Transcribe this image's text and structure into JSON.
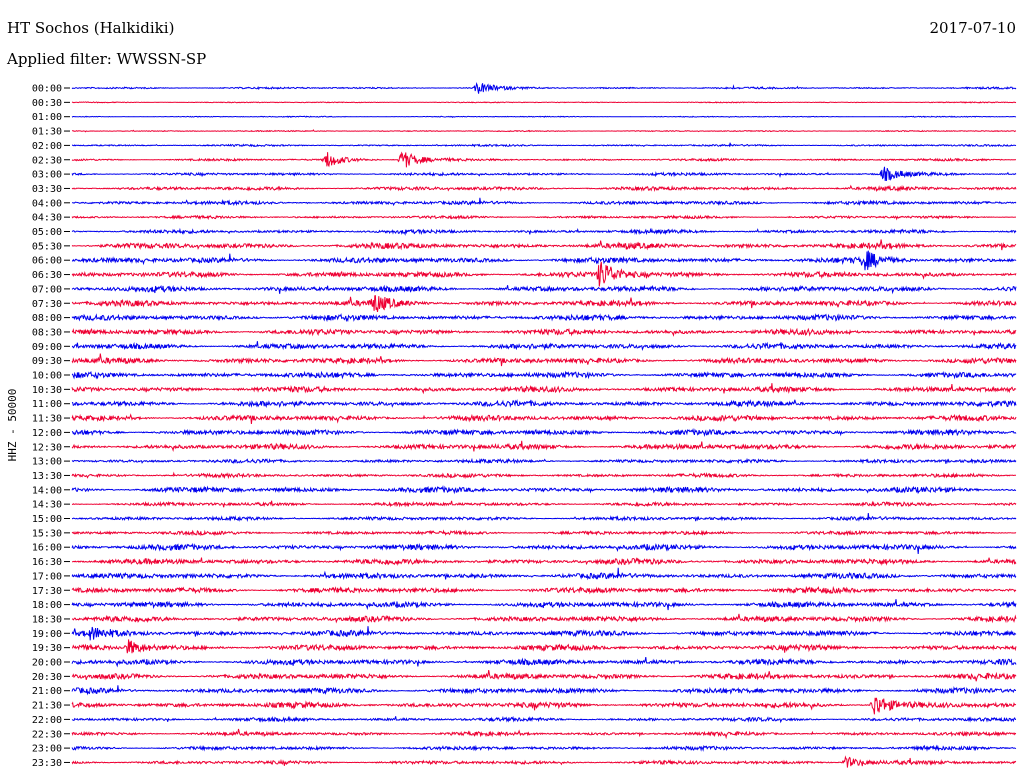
{
  "header": {
    "station": "HT Sochos (Halkidiki)",
    "date": "2017-07-10",
    "filter": "Applied filter: WWSSN-SP"
  },
  "chart_data": {
    "type": "seismogram",
    "title": "HT Sochos (Halkidiki)",
    "ylabel": "HHZ - 50000",
    "colors": [
      "#0000ee",
      "#ee0033"
    ],
    "row_labels": [
      "00:00",
      "00:30",
      "01:00",
      "01:30",
      "02:00",
      "02:30",
      "03:00",
      "03:30",
      "04:00",
      "04:30",
      "05:00",
      "05:30",
      "06:00",
      "06:30",
      "07:00",
      "07:30",
      "08:00",
      "08:30",
      "09:00",
      "09:30",
      "10:00",
      "10:30",
      "11:00",
      "11:30",
      "12:00",
      "12:30",
      "13:00",
      "13:30",
      "14:00",
      "14:30",
      "15:00",
      "15:30",
      "16:00",
      "16:30",
      "17:00",
      "17:30",
      "18:00",
      "18:30",
      "19:00",
      "19:30",
      "20:00",
      "20:30",
      "21:00",
      "21:30",
      "22:00",
      "22:30",
      "23:00",
      "23:30"
    ],
    "row_amplitude": [
      1,
      0.5,
      0.5,
      0.6,
      1,
      1.2,
      1.5,
      2,
      2,
      1.5,
      2,
      3,
      3,
      3,
      3,
      3,
      3,
      3,
      3,
      3,
      3,
      3,
      3,
      3,
      3,
      3,
      2,
      2,
      3,
      2,
      2,
      2,
      3,
      3,
      3,
      3,
      3,
      3,
      3,
      3,
      3,
      3,
      3,
      3,
      2,
      2,
      2,
      2
    ],
    "events": [
      {
        "row": "00:00",
        "t": 0.43,
        "amp": 6
      },
      {
        "row": "02:30",
        "t": 0.27,
        "amp": 8
      },
      {
        "row": "02:30",
        "t": 0.35,
        "amp": 10
      },
      {
        "row": "03:00",
        "t": 0.86,
        "amp": 7
      },
      {
        "row": "06:00",
        "t": 0.84,
        "amp": 9
      },
      {
        "row": "06:30",
        "t": 0.56,
        "amp": 14
      },
      {
        "row": "07:30",
        "t": 0.32,
        "amp": 8
      },
      {
        "row": "19:00",
        "t": 0.02,
        "amp": 5
      },
      {
        "row": "19:30",
        "t": 0.06,
        "amp": 7
      },
      {
        "row": "21:30",
        "t": 0.85,
        "amp": 12
      },
      {
        "row": "23:30",
        "t": 0.82,
        "amp": 6
      }
    ]
  }
}
